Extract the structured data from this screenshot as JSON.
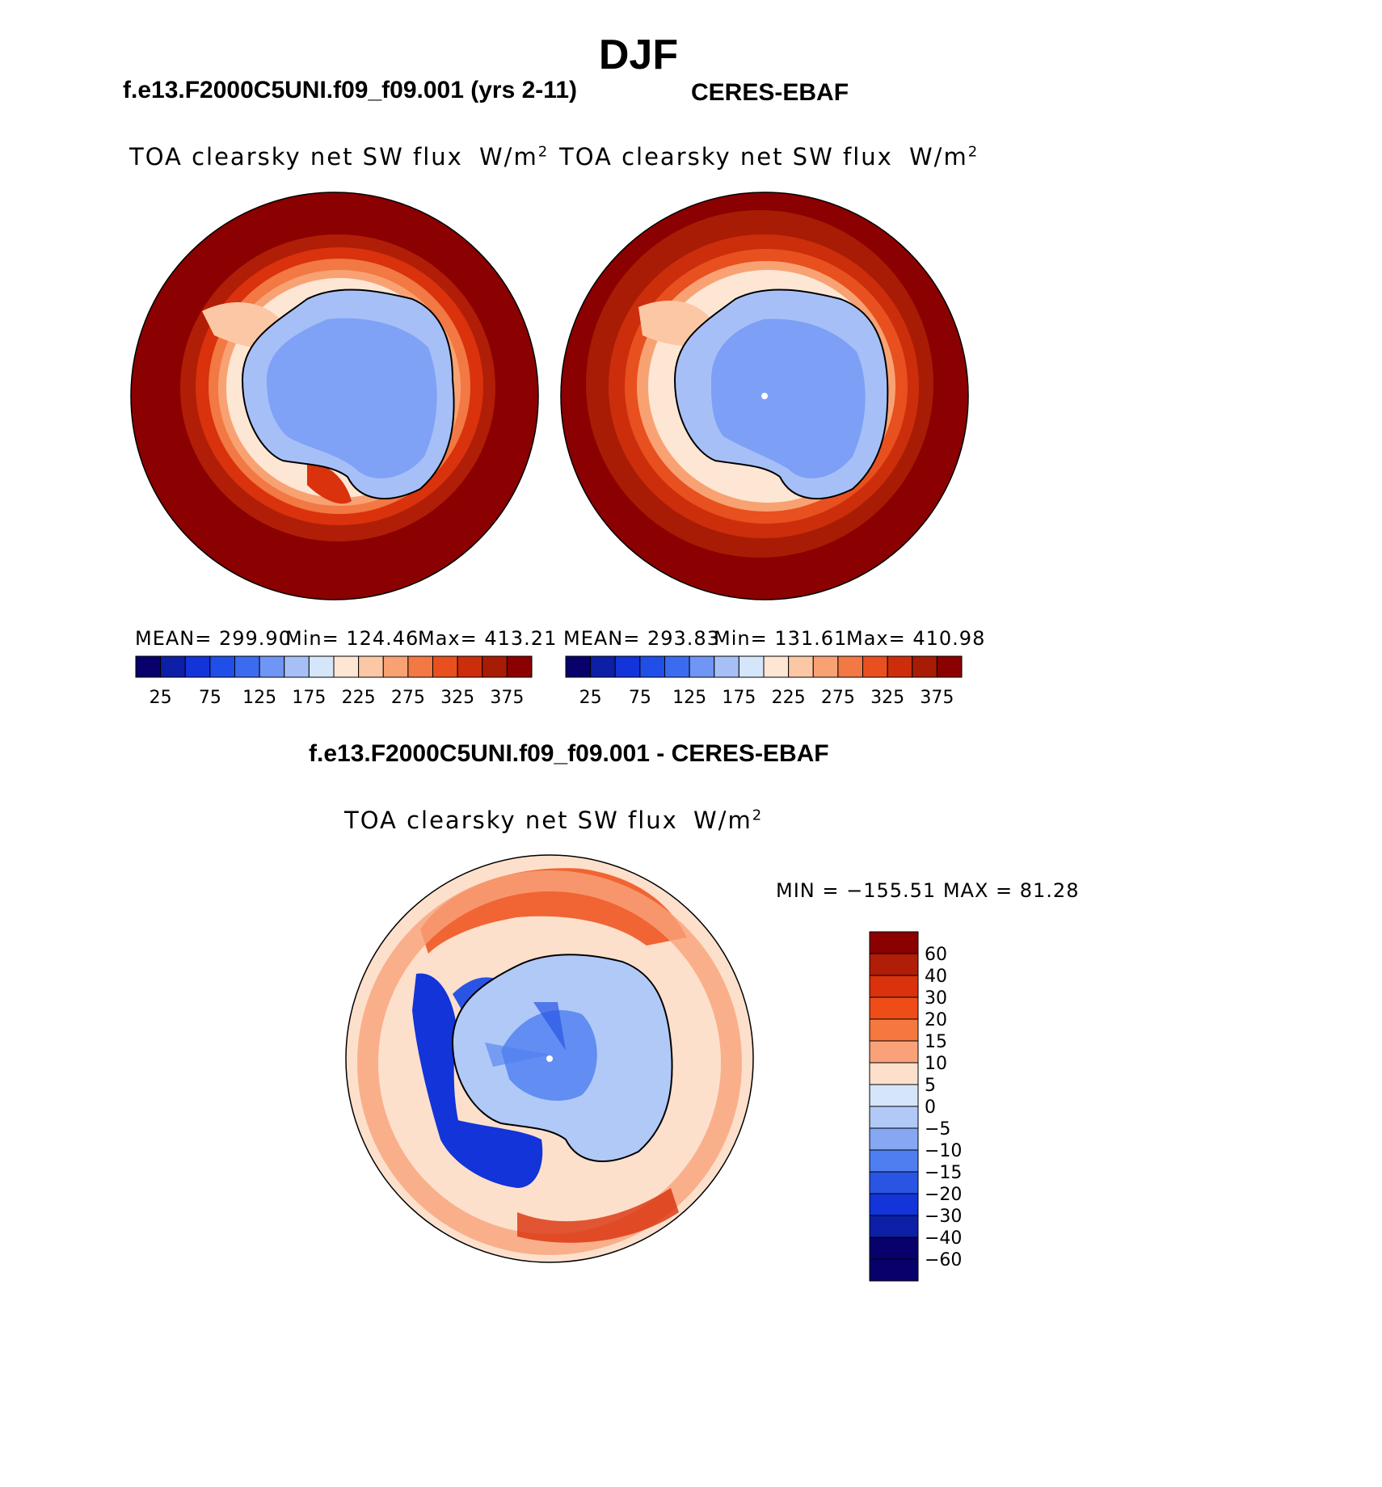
{
  "main_title": "DJF",
  "panels": [
    {
      "case_title": "f.e13.F2000C5UNI.f09_f09.001 (yrs 2-11)",
      "left_label": "TOA clearsky net SW flux",
      "unit": "W/m",
      "unit_sup": "2",
      "stats": {
        "mean": "MEAN= 299.90",
        "min": "Min= 124.46",
        "max": "Max= 413.21"
      }
    },
    {
      "case_title": "CERES-EBAF",
      "left_label": "TOA clearsky net SW flux",
      "unit": "W/m",
      "unit_sup": "2",
      "stats": {
        "mean": "MEAN= 293.83",
        "min": "Min= 131.61",
        "max": "Max= 410.98"
      }
    }
  ],
  "diff_panel": {
    "case_title": "f.e13.F2000C5UNI.f09_f09.001 - CERES-EBAF",
    "left_label": "TOA clearsky net SW flux",
    "unit": "W/m",
    "unit_sup": "2",
    "minmax": "MIN = −155.51 MAX =   81.28"
  },
  "chart_data": [
    {
      "type": "heatmap",
      "projection": "south-polar-stereographic",
      "title": "f.e13.F2000C5UNI.f09_f09.001 (yrs 2-11)",
      "variable": "TOA clearsky net SW flux",
      "units": "W/m2",
      "mean": 299.9,
      "min": 124.46,
      "max": 413.21,
      "colorbar_levels": [
        25,
        50,
        75,
        100,
        125,
        150,
        175,
        200,
        225,
        250,
        275,
        300,
        325,
        350,
        375
      ],
      "colorbar_tick_labels": [
        "25",
        "75",
        "125",
        "175",
        "225",
        "275",
        "325",
        "375"
      ]
    },
    {
      "type": "heatmap",
      "projection": "south-polar-stereographic",
      "title": "CERES-EBAF",
      "variable": "TOA clearsky net SW flux",
      "units": "W/m2",
      "mean": 293.83,
      "min": 131.61,
      "max": 410.98,
      "colorbar_levels": [
        25,
        50,
        75,
        100,
        125,
        150,
        175,
        200,
        225,
        250,
        275,
        300,
        325,
        350,
        375
      ],
      "colorbar_tick_labels": [
        "25",
        "75",
        "125",
        "175",
        "225",
        "275",
        "325",
        "375"
      ]
    },
    {
      "type": "heatmap",
      "projection": "south-polar-stereographic",
      "title": "f.e13.F2000C5UNI.f09_f09.001 - CERES-EBAF",
      "variable": "TOA clearsky net SW flux",
      "units": "W/m2",
      "min": -155.51,
      "max": 81.28,
      "colorbar_levels": [
        60,
        40,
        30,
        20,
        15,
        10,
        5,
        0,
        -5,
        -10,
        -15,
        -20,
        -30,
        -40,
        -60
      ],
      "colorbar_tick_labels": [
        "60",
        "40",
        "30",
        "20",
        "15",
        "10",
        "5",
        "0",
        "−5",
        "−10",
        "−15",
        "−20",
        "−30",
        "−40",
        "−60"
      ]
    }
  ],
  "colors": {
    "seq": [
      "#08006b",
      "#0c1fa6",
      "#1234d8",
      "#1f4fe8",
      "#3b6cf0",
      "#6f95f5",
      "#a6c0f7",
      "#d6e6fa",
      "#fde6d4",
      "#fcc7a5",
      "#f8a273",
      "#f27844",
      "#e8501f",
      "#cc2e0b",
      "#a81c05",
      "#8b0000"
    ],
    "div": [
      "#8b0000",
      "#b01e08",
      "#d9320c",
      "#ee4d17",
      "#f5793f",
      "#f9a27a",
      "#fde0cc",
      "#d6e6fa",
      "#b0c9f7",
      "#85a7f4",
      "#4f7ef0",
      "#2a55e4",
      "#1234d8",
      "#0c1fa6",
      "#08006b"
    ]
  }
}
